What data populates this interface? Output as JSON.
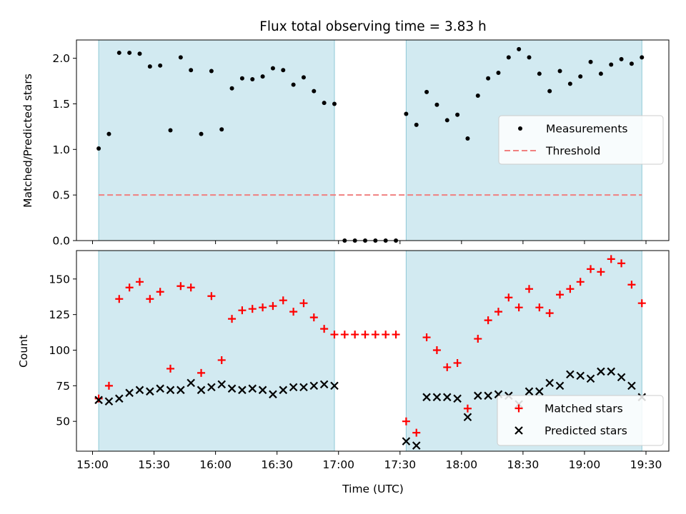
{
  "chart_data": {
    "type": "scatter",
    "title": "Flux total observing time = 3.83 h",
    "xlabel": "Time (UTC)",
    "x_ticks": [
      "15:00",
      "15:30",
      "16:00",
      "16:30",
      "17:00",
      "17:30",
      "18:00",
      "18:30",
      "19:00",
      "19:30"
    ],
    "shaded_intervals": [
      [
        "15:03",
        "16:58"
      ],
      [
        "17:33",
        "19:28"
      ]
    ],
    "shade_color": "#add8e6",
    "panels": [
      {
        "ylabel": "Matched/Predicted stars",
        "ylim": [
          0,
          2.2
        ],
        "y_ticks": [
          "0.0",
          "0.5",
          "1.0",
          "1.5",
          "2.0"
        ],
        "legend_position": "center-right",
        "series": [
          {
            "name": "Measurements",
            "marker": "dot",
            "color": "#000000",
            "x": [
              "15:03",
              "15:08",
              "15:13",
              "15:18",
              "15:23",
              "15:28",
              "15:33",
              "15:38",
              "15:43",
              "15:48",
              "15:53",
              "15:58",
              "16:03",
              "16:08",
              "16:13",
              "16:18",
              "16:23",
              "16:28",
              "16:33",
              "16:38",
              "16:43",
              "16:48",
              "16:53",
              "16:58",
              "17:03",
              "17:08",
              "17:13",
              "17:18",
              "17:23",
              "17:28",
              "17:33",
              "17:38",
              "17:43",
              "17:48",
              "17:53",
              "17:58",
              "18:03",
              "18:08",
              "18:13",
              "18:18",
              "18:23",
              "18:28",
              "18:33",
              "18:38",
              "18:43",
              "18:48",
              "18:53",
              "18:58",
              "19:03",
              "19:08",
              "19:13",
              "19:18",
              "19:23",
              "19:28"
            ],
            "y": [
              1.01,
              1.17,
              2.06,
              2.06,
              2.05,
              1.91,
              1.92,
              1.21,
              2.01,
              1.87,
              1.17,
              1.86,
              1.22,
              1.67,
              1.78,
              1.77,
              1.8,
              1.89,
              1.87,
              1.71,
              1.79,
              1.64,
              1.51,
              1.5,
              0,
              0,
              0,
              0,
              0,
              0,
              1.39,
              1.27,
              1.63,
              1.49,
              1.32,
              1.38,
              1.12,
              1.59,
              1.78,
              1.84,
              2.01,
              2.1,
              2.01,
              1.83,
              1.64,
              1.86,
              1.72,
              1.8,
              1.96,
              1.83,
              1.93,
              1.99,
              1.94,
              2.01
            ]
          },
          {
            "name": "Threshold",
            "marker": "dashed-line",
            "color": "#f08080",
            "x": [
              "15:03",
              "19:28"
            ],
            "y": [
              0.5,
              0.5
            ]
          }
        ]
      },
      {
        "ylabel": "Count",
        "ylim": [
          30,
          170
        ],
        "y_ticks": [
          "50",
          "75",
          "100",
          "125",
          "150"
        ],
        "legend_position": "lower-right",
        "series": [
          {
            "name": "Matched stars",
            "marker": "plus",
            "color": "#ff0000",
            "x": [
              "15:03",
              "15:08",
              "15:13",
              "15:18",
              "15:23",
              "15:28",
              "15:33",
              "15:38",
              "15:43",
              "15:48",
              "15:53",
              "15:58",
              "16:03",
              "16:08",
              "16:13",
              "16:18",
              "16:23",
              "16:28",
              "16:33",
              "16:38",
              "16:43",
              "16:48",
              "16:53",
              "16:58",
              "17:03",
              "17:08",
              "17:13",
              "17:18",
              "17:23",
              "17:28",
              "17:33",
              "17:38",
              "17:43",
              "17:48",
              "17:53",
              "17:58",
              "18:03",
              "18:08",
              "18:13",
              "18:18",
              "18:23",
              "18:28",
              "18:33",
              "18:38",
              "18:43",
              "18:48",
              "18:53",
              "18:58",
              "19:03",
              "19:08",
              "19:13",
              "19:18",
              "19:23",
              "19:28"
            ],
            "y": [
              66,
              75,
              136,
              144,
              148,
              136,
              141,
              87,
              145,
              144,
              84,
              138,
              93,
              122,
              128,
              129,
              130,
              131,
              135,
              127,
              133,
              123,
              115,
              111,
              111,
              111,
              111,
              111,
              111,
              111,
              50,
              42,
              109,
              100,
              88,
              91,
              59,
              108,
              121,
              127,
              137,
              130,
              143,
              130,
              126,
              139,
              143,
              148,
              157,
              155,
              164,
              161,
              146,
              133
            ]
          },
          {
            "name": "Predicted stars",
            "marker": "x",
            "color": "#000000",
            "x": [
              "15:03",
              "15:08",
              "15:13",
              "15:18",
              "15:23",
              "15:28",
              "15:33",
              "15:38",
              "15:43",
              "15:48",
              "15:53",
              "15:58",
              "16:03",
              "16:08",
              "16:13",
              "16:18",
              "16:23",
              "16:28",
              "16:33",
              "16:38",
              "16:43",
              "16:48",
              "16:53",
              "16:58",
              "17:33",
              "17:38",
              "17:43",
              "17:48",
              "17:53",
              "17:58",
              "18:03",
              "18:08",
              "18:13",
              "18:18",
              "18:23",
              "18:28",
              "18:33",
              "18:38",
              "18:43",
              "18:48",
              "18:53",
              "18:58",
              "19:03",
              "19:08",
              "19:13",
              "19:18",
              "19:23",
              "19:28"
            ],
            "y": [
              65,
              64,
              66,
              70,
              72,
              71,
              73,
              72,
              72,
              77,
              72,
              74,
              76,
              73,
              72,
              73,
              72,
              69,
              72,
              74,
              74,
              75,
              76,
              75,
              36,
              33,
              67,
              67,
              67,
              66,
              53,
              68,
              68,
              69,
              68,
              62,
              71,
              71,
              77,
              75,
              83,
              82,
              80,
              85,
              85,
              81,
              75,
              67
            ]
          }
        ]
      }
    ]
  }
}
